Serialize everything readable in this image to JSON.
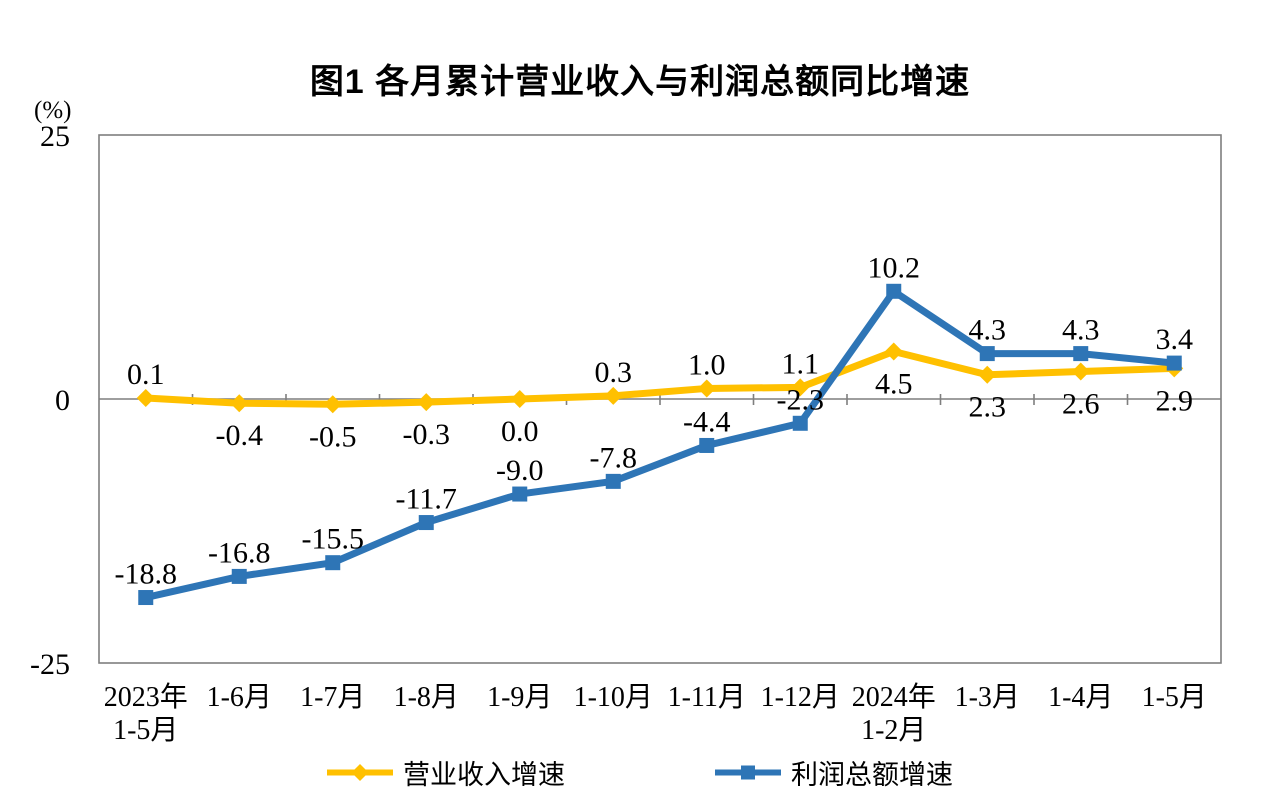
{
  "chart_data": {
    "type": "line",
    "title": "图1 各月累计营业收入与利润总额同比增速",
    "unit_label": "(%)",
    "categories": [
      "2023年\n1-5月",
      "1-6月",
      "1-7月",
      "1-8月",
      "1-9月",
      "1-10月",
      "1-11月",
      "1-12月",
      "2024年\n1-2月",
      "1-3月",
      "1-4月",
      "1-5月"
    ],
    "ylim": [
      -25,
      25
    ],
    "yticks": [
      25,
      0,
      -25
    ],
    "grid": "zero-line-only",
    "legend_position": "bottom",
    "axis_color": "#7f7f7f",
    "series": [
      {
        "name": "营业收入增速",
        "color": "#FFC000",
        "marker": "diamond",
        "values": [
          0.1,
          -0.4,
          -0.5,
          -0.3,
          0.0,
          0.3,
          1.0,
          1.1,
          4.5,
          2.3,
          2.6,
          2.9
        ],
        "label_side": [
          "above",
          "below",
          "below",
          "below",
          "below",
          "above",
          "above",
          "above",
          "below",
          "below",
          "below",
          "below"
        ]
      },
      {
        "name": "利润总额增速",
        "color": "#2E75B6",
        "marker": "square",
        "values": [
          -18.8,
          -16.8,
          -15.5,
          -11.7,
          -9.0,
          -7.8,
          -4.4,
          -2.3,
          10.2,
          4.3,
          4.3,
          3.4
        ],
        "label_side": [
          "above",
          "above",
          "above",
          "above",
          "above",
          "above",
          "above",
          "above",
          "above",
          "above",
          "above",
          "above"
        ]
      }
    ]
  }
}
